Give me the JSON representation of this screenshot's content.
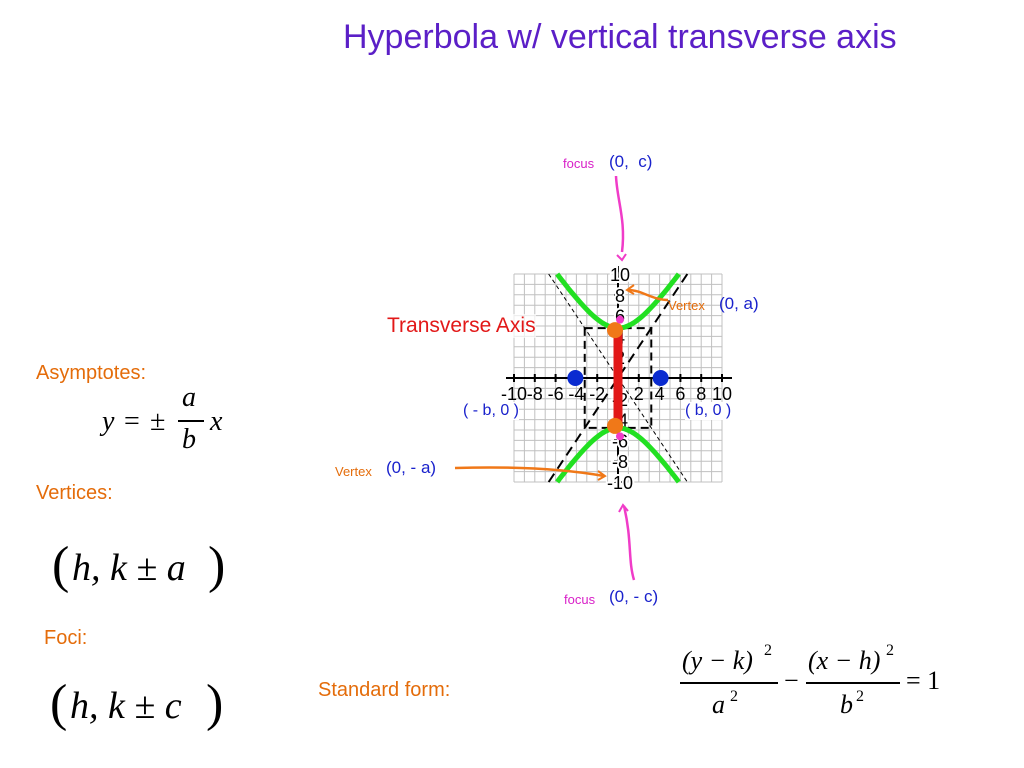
{
  "title": "Hyperbola w/ vertical transverse axis",
  "left": {
    "asymptotes_label": "Asymptotes:",
    "vertices_label": "Vertices:",
    "foci_label": "Foci:",
    "standard_form_label": "Standard form:"
  },
  "formulas": {
    "asym_y": "y",
    "asym_eq": "=",
    "asym_pm": "±",
    "asym_num": "a",
    "asym_den": "b",
    "asym_x": "x",
    "vert_lp": "(",
    "vert_body": "h, k ± a",
    "vert_rp": ")",
    "foci_lp": "(",
    "foci_body": "h, k ± c",
    "foci_rp": ")",
    "std_num1": "(y − k)",
    "std_exp1": "2",
    "std_den1": "a",
    "std_den1_exp": "2",
    "std_minus": "−",
    "std_num2": "(x − h)",
    "std_exp2": "2",
    "std_den2": "b",
    "std_den2_exp": "2",
    "std_rhs": "= 1"
  },
  "annotations": {
    "focus_top_word": "focus",
    "focus_top_coord": "(0,  c)",
    "vertex_top_word": "Vertex",
    "vertex_top_coord": "(0, a)",
    "transverse_axis": "Transverse Axis",
    "co_vertex_left": "( - b, 0 )",
    "co_vertex_right": "( b, 0 )",
    "vertex_bottom_word": "Vertex",
    "vertex_bottom_coord": "(0, - a)",
    "focus_bottom_word": "focus",
    "focus_bottom_coord": "(0, - c)"
  },
  "graph": {
    "x_ticks": [
      "-10",
      "-8",
      "-6",
      "-4",
      "-2",
      "2",
      "4",
      "6",
      "8",
      "10"
    ],
    "y_ticks": [
      "10",
      "8",
      "6",
      "4",
      "2",
      "-2",
      "-4",
      "-6",
      "-8",
      "-10"
    ],
    "xlim": [
      -10,
      10
    ],
    "ylim": [
      -10,
      10
    ],
    "a": 4.8,
    "b": 3.2,
    "c": 5.8,
    "colors": {
      "hyperbola": "#22e022",
      "transverse_axis": "#e21818",
      "vertex": "#f07818",
      "focus": "#f03cc8",
      "co_vertex": "#0a2bd0",
      "coord_text": "#1a22cc",
      "title": "#5b1fc7",
      "orange_text": "#e46c0a",
      "red_text": "#e21818",
      "magenta_text": "#d81fc8",
      "grid": "#c0c0c0"
    }
  }
}
